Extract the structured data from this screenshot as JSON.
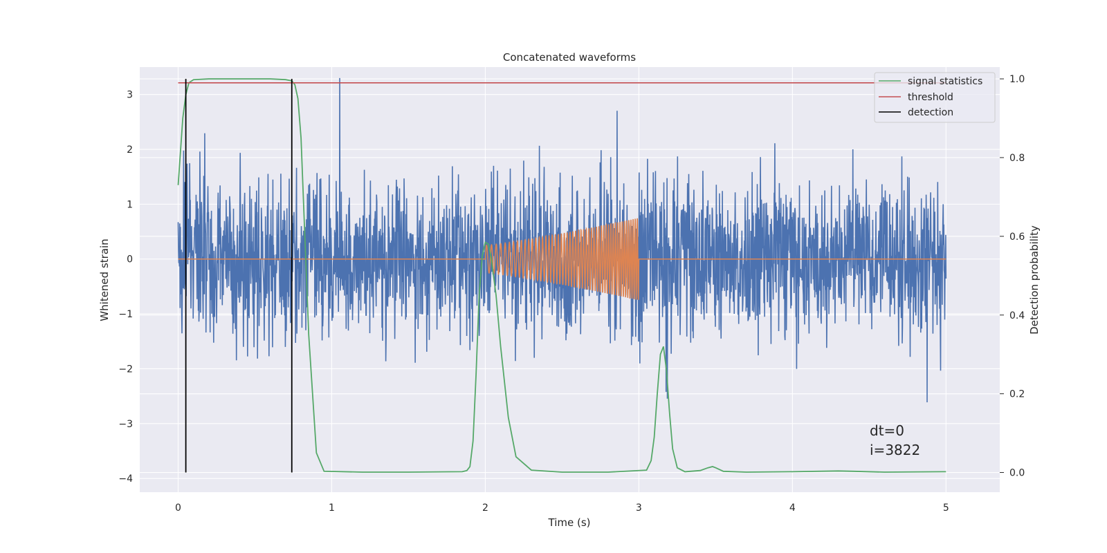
{
  "chart_data": {
    "type": "line",
    "title": "Concatenated waveforms",
    "xlabel": "Time (s)",
    "ylabel": "Whitened strain",
    "y2label": "Detection probability",
    "xlim": [
      -0.25,
      5.35
    ],
    "ylim": [
      -4.25,
      3.5
    ],
    "y2lim": [
      -0.05,
      1.03
    ],
    "xticks": [
      0,
      1,
      2,
      3,
      4,
      5
    ],
    "yticks": [
      -4,
      -3,
      -2,
      -1,
      0,
      1,
      2,
      3
    ],
    "y2ticks": [
      0.0,
      0.2,
      0.4,
      0.6,
      0.8,
      1.0
    ],
    "y2tick_labels": [
      "0.0",
      "0.2",
      "0.4",
      "0.6",
      "0.8",
      "1.0"
    ],
    "grid": true,
    "legend_position": "top-right",
    "series": [
      {
        "name": "",
        "kind": "noise",
        "color": "#4c72b0",
        "x_range": [
          0,
          5
        ],
        "typical_amplitude": 0.9,
        "peak_amplitude": 3.3
      },
      {
        "name": "",
        "kind": "chirp",
        "color": "#dd8452",
        "x_range": [
          2,
          3
        ],
        "baseline": 0,
        "amplitude_start": 0.25,
        "amplitude_end": 0.75,
        "cycles": 52
      },
      {
        "name": "signal statistics",
        "axis": "right",
        "color": "#55a868",
        "x": [
          0.0,
          0.03,
          0.05,
          0.07,
          0.1,
          0.2,
          0.4,
          0.6,
          0.7,
          0.74,
          0.76,
          0.78,
          0.8,
          0.82,
          0.85,
          0.9,
          0.95,
          1.2,
          1.5,
          1.85,
          1.88,
          1.9,
          1.92,
          1.94,
          1.96,
          1.98,
          2.0,
          2.02,
          2.04,
          2.07,
          2.1,
          2.15,
          2.2,
          2.3,
          2.5,
          2.8,
          3.05,
          3.08,
          3.1,
          3.12,
          3.14,
          3.16,
          3.18,
          3.2,
          3.22,
          3.25,
          3.3,
          3.4,
          3.45,
          3.48,
          3.5,
          3.55,
          3.7,
          4.0,
          4.3,
          4.4,
          4.6,
          5.0
        ],
        "y": [
          0.73,
          0.9,
          0.96,
          0.99,
          0.998,
          1.0,
          1.0,
          1.0,
          0.998,
          0.995,
          0.985,
          0.95,
          0.85,
          0.65,
          0.35,
          0.05,
          0.003,
          0.001,
          0.001,
          0.002,
          0.005,
          0.015,
          0.08,
          0.25,
          0.45,
          0.55,
          0.585,
          0.58,
          0.54,
          0.45,
          0.32,
          0.14,
          0.04,
          0.006,
          0.001,
          0.001,
          0.006,
          0.03,
          0.09,
          0.2,
          0.3,
          0.32,
          0.26,
          0.15,
          0.06,
          0.012,
          0.002,
          0.005,
          0.012,
          0.015,
          0.012,
          0.003,
          0.001,
          0.002,
          0.004,
          0.003,
          0.001,
          0.002
        ]
      },
      {
        "name": "threshold",
        "axis": "right",
        "color": "#c44e52",
        "x": [
          0,
          5
        ],
        "y": [
          0.99,
          0.99
        ]
      },
      {
        "name": "detection",
        "axis": "right",
        "color": "#000000",
        "kind": "vlines",
        "x": [
          0.05,
          0.74
        ],
        "y": [
          0.0,
          1.0
        ]
      }
    ],
    "annotations": [
      "dt=0",
      "i=3822"
    ],
    "colors": {
      "background": "#eaeaf2",
      "grid": "#ffffff",
      "strain": "#4c72b0",
      "chirp": "#dd8452",
      "signal": "#55a868",
      "threshold": "#c44e52",
      "detection": "#000000"
    }
  }
}
